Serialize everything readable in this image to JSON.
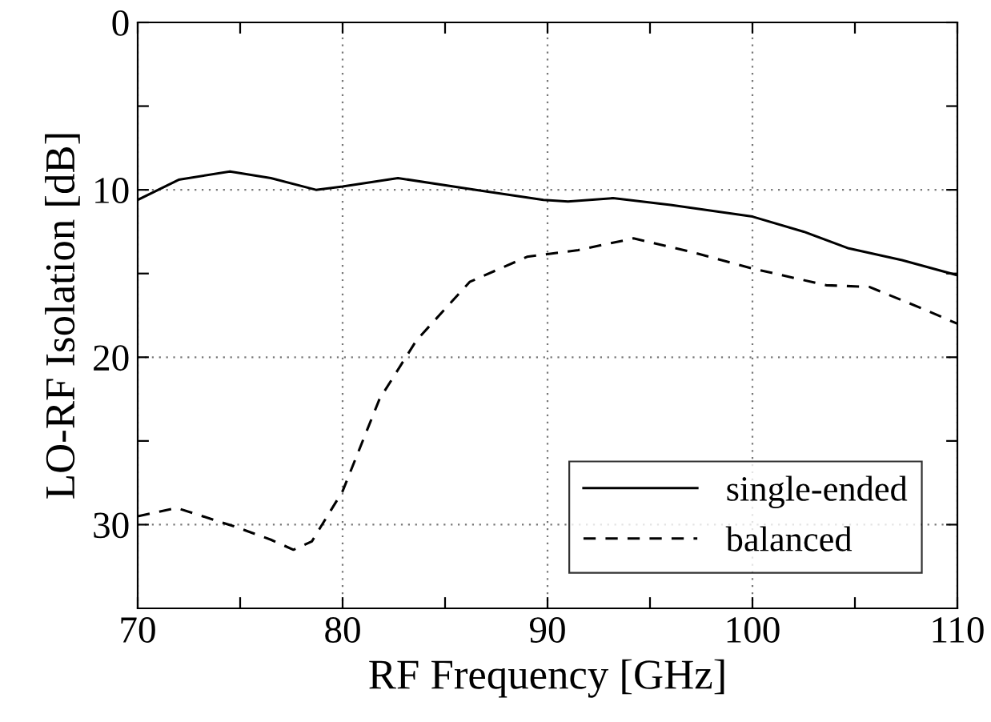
{
  "chart_data": {
    "type": "line",
    "xlabel": "RF Frequency [GHz]",
    "ylabel": "LO-RF Isolation [dB]",
    "xlim": [
      70,
      110
    ],
    "ylim": [
      35,
      0
    ],
    "xticks": [
      70,
      {
        "value": 75,
        "label": null
      },
      80,
      {
        "value": 85,
        "label": null
      },
      90,
      {
        "value": 95,
        "label": null
      },
      100,
      {
        "value": 105,
        "label": null
      },
      110
    ],
    "yticks": [
      0,
      {
        "value": 5,
        "label": null
      },
      10,
      {
        "value": 15,
        "label": null
      },
      20,
      {
        "value": 25,
        "label": null
      },
      30
    ],
    "grid": true,
    "legend": "bottom right",
    "series": [
      {
        "name": "single-ended",
        "color": "#000000",
        "line_style": "solid",
        "x": [
          70,
          72,
          74.5,
          76.5,
          78.7,
          80,
          82.7,
          86.5,
          89.8,
          91,
          93.2,
          96,
          100,
          102.5,
          104.7,
          107.3,
          110
        ],
        "values": [
          10.6,
          9.4,
          8.9,
          9.3,
          10.0,
          9.8,
          9.3,
          10.0,
          10.6,
          10.7,
          10.5,
          10.9,
          11.6,
          12.5,
          13.5,
          14.2,
          15.1
        ]
      },
      {
        "name": "balanced",
        "color": "#000000",
        "line_style": "dashed",
        "x": [
          70,
          71.9,
          74.7,
          76.5,
          77.6,
          78.5,
          80,
          81.8,
          83.6,
          86.2,
          89,
          91.5,
          94.2,
          97,
          100,
          103.6,
          105.7,
          108.3,
          110
        ],
        "values": [
          29.5,
          29.0,
          30.1,
          30.9,
          31.5,
          31.0,
          28.0,
          22.5,
          19.0,
          15.5,
          14.0,
          13.6,
          12.9,
          13.7,
          14.7,
          15.7,
          15.8,
          17.1,
          18.0
        ]
      }
    ]
  }
}
